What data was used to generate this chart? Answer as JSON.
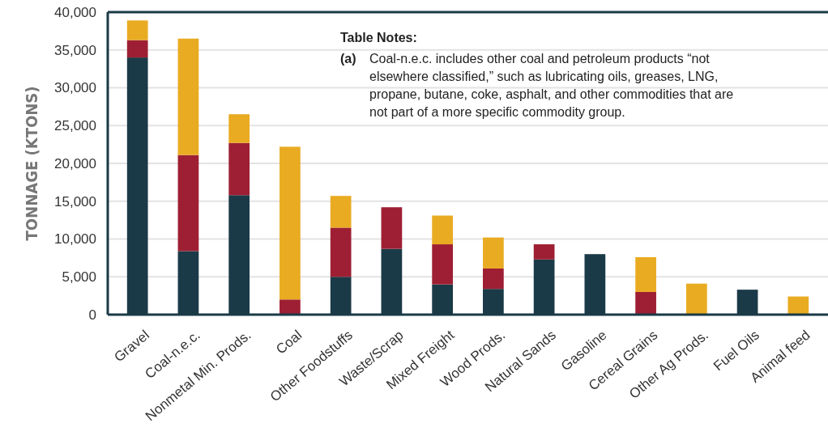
{
  "chart_data": {
    "type": "bar",
    "stacked": true,
    "ylabel": "TONNAGE (KTONS)",
    "categories": [
      "Gravel",
      "Coal-n.e.c.",
      "Nonmetal Min. Prods.",
      "Coal",
      "Other Foodstuffs",
      "Waste/Scrap",
      "Mixed Freight",
      "Wood Prods.",
      "Natural Sands",
      "Gasoline",
      "Cereal Grains",
      "Other Ag Prods.",
      "Fuel Oils",
      "Animal feed"
    ],
    "series": [
      {
        "color": "#1b3a47",
        "values": [
          34000,
          8400,
          15800,
          0,
          5000,
          8700,
          4000,
          3400,
          7300,
          8000,
          0,
          0,
          3300,
          0
        ]
      },
      {
        "color": "#9e1f33",
        "values": [
          2300,
          12700,
          6900,
          2000,
          6500,
          5500,
          5300,
          2700,
          2000,
          0,
          3000,
          0,
          0,
          0
        ]
      },
      {
        "color": "#e9ab22",
        "values": [
          2600,
          15400,
          3800,
          20200,
          4200,
          0,
          3800,
          4100,
          0,
          0,
          4600,
          4100,
          0,
          2400
        ]
      }
    ],
    "ylim": [
      0,
      40000
    ],
    "yticks": [
      {
        "value": 0,
        "label": "0"
      },
      {
        "value": 5000,
        "label": "5,000"
      },
      {
        "value": 10000,
        "label": "10,000"
      },
      {
        "value": 15000,
        "label": "15,000"
      },
      {
        "value": 20000,
        "label": "20,000"
      },
      {
        "value": 25000,
        "label": "25,000"
      },
      {
        "value": 30000,
        "label": "30,000"
      },
      {
        "value": 35000,
        "label": "35,000"
      },
      {
        "value": 40000,
        "label": "40,000"
      }
    ],
    "grid": "y",
    "annotations": [
      "Table Notes:",
      "(a) Coal-n.e.c. includes other coal and petroleum products “not elsewhere classified,” such as lubricating oils, greases, LNG, propane, butane, coke, asphalt, and other commodities that are not part of a more specific commodity group."
    ]
  }
}
